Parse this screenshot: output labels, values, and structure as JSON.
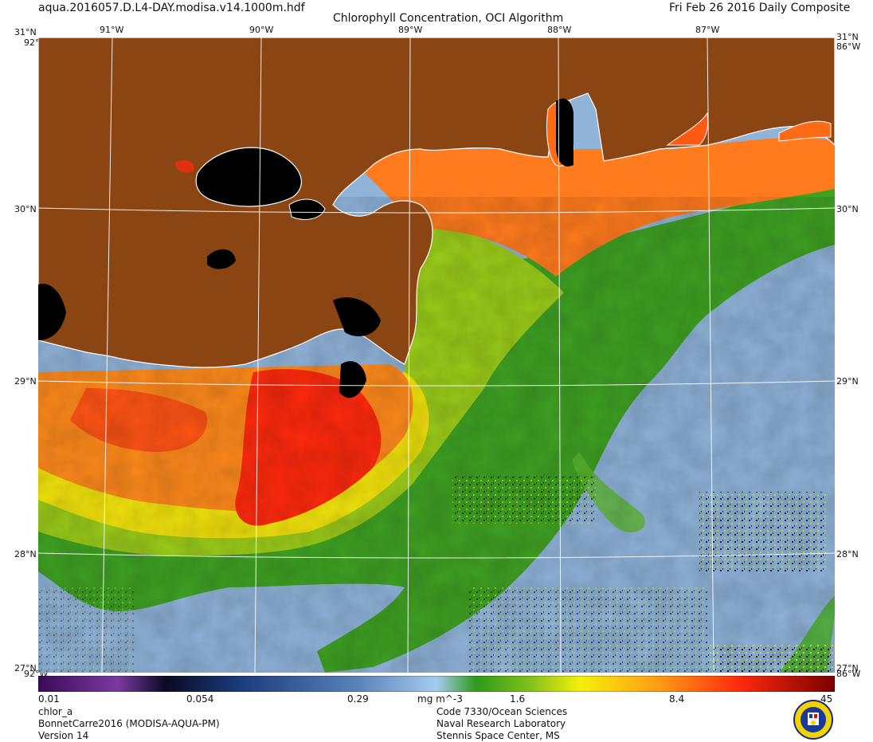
{
  "header": {
    "filename": "aqua.2016057.D.L4-DAY.modisa.v14.1000m.hdf",
    "title": "Chlorophyll Concentration, OCI Algorithm",
    "date": "Fri Feb 26 2016 Daily Composite"
  },
  "axes": {
    "lon_labels": [
      "91°W",
      "90°W",
      "89°W",
      "88°W",
      "87°W"
    ],
    "lat_labels": [
      "30°N",
      "29°N",
      "28°N"
    ],
    "corner_top": "31°N",
    "corner_top_sub": "92°W",
    "corner_top_right_sub": "86°W",
    "corner_bottom": "27°N",
    "corner_bottom_sub": "92°W",
    "corner_bottom_right_sub": "86°W"
  },
  "colorbar": {
    "tick_labels": [
      "0.01",
      "0.054",
      "0.29",
      "1.6",
      "8.4",
      "45"
    ],
    "units": "mg m^-3",
    "scale": "log"
  },
  "footer": {
    "left": [
      "chlor_a",
      "BonnetCarre2016 (MODISA-AQUA-PM)",
      "Version 14"
    ],
    "center": [
      "Code 7330/Ocean Sciences",
      "Naval Research Laboratory",
      "Stennis Space Center, MS"
    ]
  },
  "colors": {
    "land": "#8b4513",
    "cloud": "#000000",
    "grid": "#ffffff"
  }
}
